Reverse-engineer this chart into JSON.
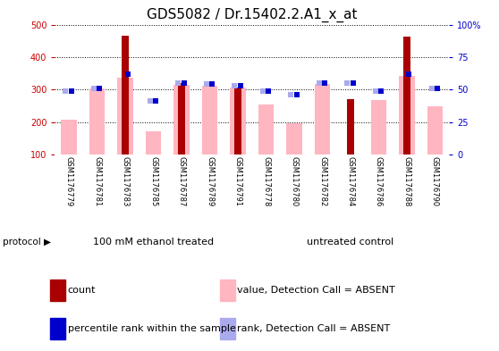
{
  "title": "GDS5082 / Dr.15402.2.A1_x_at",
  "samples": [
    "GSM1176779",
    "GSM1176781",
    "GSM1176783",
    "GSM1176785",
    "GSM1176787",
    "GSM1176789",
    "GSM1176791",
    "GSM1176778",
    "GSM1176780",
    "GSM1176782",
    "GSM1176784",
    "GSM1176786",
    "GSM1176788",
    "GSM1176790"
  ],
  "group1_label": "100 mM ethanol treated",
  "group2_label": "untreated control",
  "group1_count": 7,
  "group2_count": 7,
  "protocol_label": "protocol",
  "red_bars": [
    100,
    100,
    465,
    100,
    320,
    100,
    305,
    100,
    100,
    100,
    270,
    100,
    462,
    100
  ],
  "pink_bars": [
    207,
    303,
    336,
    172,
    315,
    312,
    305,
    255,
    197,
    318,
    100,
    268,
    342,
    248
  ],
  "blue_squares": [
    49,
    51,
    62,
    41,
    55,
    54,
    53,
    49,
    46,
    55,
    55,
    49,
    62,
    51
  ],
  "light_blue_squares": [
    49,
    51,
    null,
    41,
    55,
    54,
    53,
    49,
    46,
    55,
    55,
    49,
    null,
    51
  ],
  "ylim_left": [
    100,
    500
  ],
  "ylim_right": [
    0,
    100
  ],
  "yticks_left": [
    100,
    200,
    300,
    400,
    500
  ],
  "yticks_right": [
    0,
    25,
    50,
    75,
    100
  ],
  "ytick_labels_right": [
    "0",
    "25",
    "50",
    "75",
    "100%"
  ],
  "left_axis_color": "#cc0000",
  "right_axis_color": "#0000cc",
  "red_color": "#aa0000",
  "pink_color": "#ffb6c1",
  "blue_color": "#0000cc",
  "light_blue_color": "#aaaaee",
  "bg_chart": "#ffffff",
  "bg_xticklabels": "#cccccc",
  "bg_protocol_green": "#55dd55",
  "legend_items": [
    {
      "label": "count",
      "color": "#aa0000"
    },
    {
      "label": "percentile rank within the sample",
      "color": "#0000cc"
    },
    {
      "label": "value, Detection Call = ABSENT",
      "color": "#ffb6c1"
    },
    {
      "label": "rank, Detection Call = ABSENT",
      "color": "#aaaaee"
    }
  ],
  "title_fontsize": 11,
  "tick_fontsize": 7,
  "label_fontsize": 6,
  "legend_fontsize": 8,
  "pink_bar_width": 0.55,
  "red_bar_width": 0.25,
  "blue_sq_size": 25,
  "light_blue_sq_size": 20
}
